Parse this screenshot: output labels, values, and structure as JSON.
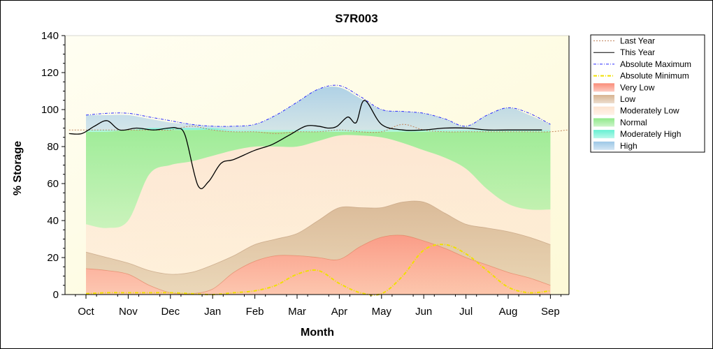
{
  "chart_data": {
    "type": "area",
    "title": "S7R003",
    "xlabel": "Month",
    "ylabel": "% Storage",
    "ylim": [
      0,
      140
    ],
    "yticks": [
      0,
      20,
      40,
      60,
      80,
      100,
      120,
      140
    ],
    "categories": [
      "Oct",
      "Nov",
      "Dec",
      "Jan",
      "Feb",
      "Mar",
      "Apr",
      "May",
      "Jun",
      "Jul",
      "Aug",
      "Sep"
    ],
    "legend_position": "top-right",
    "grid": false,
    "legend": [
      {
        "key": "last_year",
        "label": "Last Year",
        "color": "#c0825a",
        "kind": "dotted"
      },
      {
        "key": "this_year",
        "label": "This Year",
        "color": "#000000",
        "kind": "solid"
      },
      {
        "key": "abs_max",
        "label": "Absolute Maximum",
        "color": "#2a2aff",
        "kind": "dashdot"
      },
      {
        "key": "abs_min",
        "label": "Absolute Minimum",
        "color": "#f0e000",
        "kind": "dashdotthick"
      },
      {
        "key": "very_low",
        "label": "Very Low",
        "color": "#fa8c78",
        "kind": "box"
      },
      {
        "key": "low",
        "label": "Low",
        "color": "#d7b491",
        "kind": "box"
      },
      {
        "key": "moderately_low",
        "label": "Moderately Low",
        "color": "#fde3cf",
        "kind": "box"
      },
      {
        "key": "normal",
        "label": "Normal",
        "color": "#8fe98a",
        "kind": "box"
      },
      {
        "key": "moderately_high",
        "label": "Moderately High",
        "color": "#66f0d2",
        "kind": "box"
      },
      {
        "key": "high",
        "label": "High",
        "color": "#9cc7e6",
        "kind": "box"
      }
    ],
    "x": [
      0,
      0.5,
      1,
      1.5,
      2,
      2.5,
      3,
      3.5,
      4,
      4.5,
      5,
      5.5,
      6,
      6.5,
      7,
      7.5,
      8,
      8.5,
      9,
      9.5,
      10,
      10.5,
      11
    ],
    "bands": {
      "very_low_top": [
        14,
        13,
        11,
        5,
        1,
        0.5,
        3,
        12,
        18,
        21,
        21,
        20,
        19,
        26,
        31,
        32,
        29,
        25,
        20,
        16,
        12,
        9,
        5
      ],
      "low_top": [
        23,
        20,
        17,
        13,
        11,
        12,
        16,
        21,
        27,
        30,
        33,
        40,
        47,
        47,
        47,
        50,
        50,
        44,
        38,
        36,
        34,
        31,
        27
      ],
      "moderately_low_top": [
        38,
        36,
        40,
        65,
        70,
        72,
        75,
        78,
        80,
        80,
        80,
        83,
        86,
        86,
        85,
        82,
        78,
        74,
        68,
        57,
        49,
        46,
        46
      ],
      "normal_top": [
        88,
        88,
        89,
        89,
        89,
        89,
        89,
        88,
        88,
        88,
        88,
        88,
        88,
        88,
        88,
        88,
        88,
        88,
        88,
        88,
        88,
        88,
        88
      ],
      "moderately_high_top": [
        89,
        89,
        89,
        90,
        90,
        90,
        90,
        89,
        89,
        89,
        89,
        89,
        89,
        89,
        89,
        89,
        89,
        89,
        89,
        89,
        89,
        89,
        89
      ],
      "high_top": [
        97,
        97,
        97,
        95,
        93,
        92,
        91,
        91,
        92,
        97,
        104,
        111,
        112,
        106,
        100,
        99,
        98,
        95,
        91,
        97,
        101,
        97,
        92
      ]
    },
    "series": [
      {
        "key": "last_year",
        "name": "Last Year",
        "x": [
          -0.4,
          0,
          0.5,
          1,
          1.5,
          2,
          2.5,
          3,
          3.5,
          4,
          4.5,
          5,
          5.5,
          6,
          6.5,
          7,
          7.5,
          8,
          8.5,
          9,
          9.5,
          10,
          10.5,
          11,
          11.4
        ],
        "y": [
          89,
          89,
          89,
          89,
          89,
          89,
          91,
          89,
          88,
          88,
          87,
          88,
          88,
          89,
          88,
          88,
          92,
          89,
          88,
          88,
          88,
          88,
          88,
          88,
          89
        ]
      },
      {
        "key": "this_year",
        "name": "This Year",
        "x": [
          -0.4,
          -0.1,
          0.2,
          0.5,
          0.8,
          1.2,
          1.6,
          1.95,
          2.15,
          2.35,
          2.65,
          2.9,
          3.2,
          3.5,
          4,
          4.4,
          4.8,
          5.2,
          5.5,
          5.75,
          5.95,
          6.2,
          6.4,
          6.6,
          7,
          7.5,
          8,
          8.5,
          9,
          9.5,
          10,
          10.5,
          10.8
        ],
        "y": [
          87,
          87,
          91,
          94,
          89,
          90,
          89,
          90,
          90,
          86,
          59,
          61,
          71,
          73,
          78,
          81,
          86,
          91,
          91,
          90,
          91,
          96,
          93,
          105,
          92,
          89,
          89,
          90,
          90,
          89,
          89,
          89,
          89
        ]
      },
      {
        "key": "abs_max",
        "name": "Absolute Maximum",
        "x": [
          0,
          0.5,
          1,
          1.5,
          2,
          2.5,
          3,
          3.5,
          4,
          4.5,
          5,
          5.5,
          6,
          6.5,
          7,
          7.5,
          8,
          8.5,
          9,
          9.5,
          10,
          10.5,
          11
        ],
        "y": [
          97,
          98,
          98,
          96,
          94,
          92,
          91,
          91,
          92,
          97,
          104,
          111,
          113,
          107,
          100,
          99,
          98,
          95,
          91,
          97,
          101,
          98,
          92
        ]
      },
      {
        "key": "abs_min",
        "name": "Absolute Minimum",
        "x": [
          0,
          0.5,
          1,
          1.5,
          2,
          2.5,
          3,
          3.5,
          4,
          4.5,
          5,
          5.5,
          6,
          6.5,
          7,
          7.5,
          8,
          8.5,
          9,
          9.5,
          10,
          10.5,
          11
        ],
        "y": [
          0.5,
          1,
          1,
          1,
          1,
          0.5,
          0,
          1,
          2,
          5,
          11,
          13,
          6,
          1,
          0.5,
          10,
          24,
          27,
          22,
          13,
          4,
          1,
          2
        ]
      }
    ]
  }
}
